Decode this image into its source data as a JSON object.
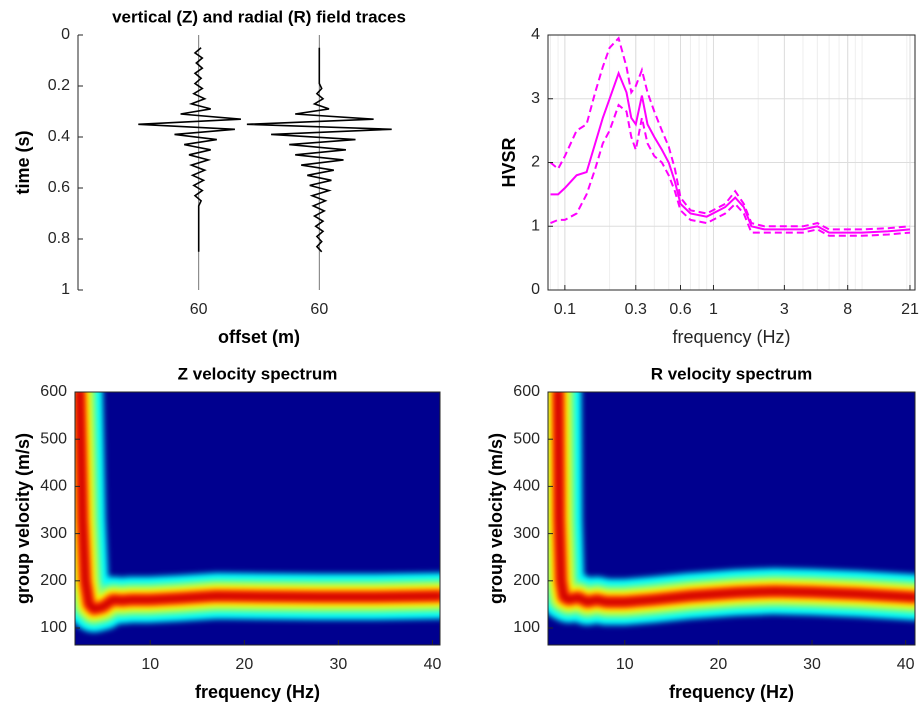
{
  "chart_data": [
    {
      "type": "wiggle",
      "title": "vertical (Z) and radial (R) field traces",
      "xlabel": "offset (m)",
      "ylabel": "time (s)",
      "xlim": [
        0,
        3
      ],
      "xticks": [
        {
          "value": 1,
          "label": "60"
        },
        {
          "value": 2,
          "label": "60"
        }
      ],
      "ylim": [
        0,
        1
      ],
      "yticks": [
        0,
        0.2,
        0.4,
        0.6,
        0.8,
        1
      ],
      "yreverse": true,
      "color": "#000000",
      "x": [
        0.05,
        0.07,
        0.09,
        0.11,
        0.13,
        0.15,
        0.17,
        0.19,
        0.21,
        0.23,
        0.25,
        0.27,
        0.29,
        0.31,
        0.33,
        0.35,
        0.37,
        0.39,
        0.41,
        0.43,
        0.45,
        0.47,
        0.49,
        0.51,
        0.53,
        0.55,
        0.57,
        0.59,
        0.61,
        0.63,
        0.65,
        0.67,
        0.69,
        0.71,
        0.73,
        0.75,
        0.77,
        0.79,
        0.81,
        0.83,
        0.85
      ],
      "series": [
        {
          "values": [
            0.02,
            -0.03,
            0.03,
            -0.02,
            0.03,
            -0.03,
            0.02,
            -0.03,
            0.03,
            -0.04,
            0.05,
            -0.06,
            0.1,
            -0.15,
            0.35,
            -0.5,
            0.3,
            -0.2,
            0.15,
            -0.12,
            0.1,
            -0.08,
            0.08,
            -0.06,
            0.05,
            -0.05,
            0.04,
            -0.04,
            0.03,
            -0.03,
            0.02,
            0,
            0,
            0,
            0,
            0,
            0,
            0,
            0,
            0,
            0
          ]
        },
        {
          "values": [
            0,
            0,
            0,
            0,
            0,
            0,
            0,
            0,
            0.02,
            -0.02,
            0.03,
            -0.04,
            0.08,
            -0.2,
            0.45,
            -0.6,
            0.6,
            -0.4,
            0.3,
            -0.25,
            0.22,
            -0.2,
            0.2,
            -0.15,
            0.12,
            -0.1,
            0.1,
            -0.08,
            0.08,
            -0.06,
            0.05,
            -0.05,
            0.04,
            -0.04,
            0.03,
            -0.03,
            0.03,
            -0.02,
            0.02,
            -0.02,
            0.02
          ]
        }
      ]
    },
    {
      "type": "line",
      "xlabel": "frequency (Hz)",
      "ylabel": "HVSR",
      "xscale": "log",
      "grid": true,
      "xlim": [
        0.077,
        22.7
      ],
      "xticks": [
        0.1,
        0.3,
        0.6,
        1,
        3,
        8,
        21
      ],
      "ylim": [
        0,
        4
      ],
      "yticks": [
        0,
        1,
        2,
        3,
        4
      ],
      "x": [
        0.08,
        0.09,
        0.1,
        0.12,
        0.14,
        0.16,
        0.18,
        0.2,
        0.23,
        0.26,
        0.28,
        0.3,
        0.33,
        0.36,
        0.4,
        0.45,
        0.5,
        0.55,
        0.6,
        0.7,
        0.9,
        1.2,
        1.4,
        1.6,
        1.8,
        2.2,
        3,
        4,
        5,
        6,
        8,
        10,
        15,
        21
      ],
      "series": [
        {
          "color": "#ff00ff",
          "dash": false,
          "values": [
            1.5,
            1.5,
            1.6,
            1.8,
            1.85,
            2.3,
            2.7,
            3.0,
            3.4,
            3.1,
            2.7,
            2.6,
            3.05,
            2.6,
            2.4,
            2.2,
            2.0,
            1.7,
            1.35,
            1.2,
            1.15,
            1.3,
            1.45,
            1.3,
            1.0,
            0.95,
            0.95,
            0.95,
            1.0,
            0.9,
            0.9,
            0.9,
            0.92,
            0.95
          ]
        },
        {
          "color": "#ff00ff",
          "dash": true,
          "values": [
            2.0,
            1.9,
            2.1,
            2.5,
            2.6,
            3.1,
            3.5,
            3.8,
            3.95,
            3.5,
            3.1,
            3.2,
            3.45,
            3.1,
            2.8,
            2.5,
            2.25,
            1.9,
            1.45,
            1.25,
            1.2,
            1.35,
            1.55,
            1.35,
            1.05,
            1.0,
            1.0,
            1.0,
            1.05,
            0.95,
            0.95,
            0.95,
            0.97,
            1.0
          ]
        },
        {
          "color": "#ff00ff",
          "dash": true,
          "values": [
            1.05,
            1.1,
            1.1,
            1.2,
            1.5,
            1.9,
            2.3,
            2.5,
            2.9,
            2.8,
            2.4,
            2.2,
            2.7,
            2.3,
            2.1,
            2.0,
            1.8,
            1.55,
            1.25,
            1.1,
            1.05,
            1.2,
            1.35,
            1.2,
            0.9,
            0.9,
            0.9,
            0.9,
            0.95,
            0.85,
            0.85,
            0.85,
            0.87,
            0.9
          ]
        }
      ]
    },
    {
      "type": "heatmap",
      "title": "Z velocity spectrum",
      "xlabel": "frequency (Hz)",
      "ylabel": "group velocity (m/s)",
      "xlim": [
        2,
        40.8
      ],
      "xticks": [
        10,
        20,
        30,
        40
      ],
      "ylim": [
        64,
        600
      ],
      "yticks": [
        100,
        200,
        300,
        400,
        500,
        600
      ],
      "background": "#00008f",
      "colormap": [
        "#00ffff",
        "#80ff80",
        "#ffff00",
        "#ff8000",
        "#ff0000",
        "#a00000"
      ],
      "x": [
        2.5,
        2.8,
        3.1,
        3.5,
        4,
        5,
        6,
        7,
        8,
        10,
        13,
        17,
        22,
        28,
        34,
        40.8
      ],
      "values": [
        600,
        330,
        200,
        150,
        140,
        145,
        160,
        158,
        160,
        160,
        163,
        168,
        167,
        166,
        166,
        168
      ]
    },
    {
      "type": "heatmap",
      "title": "R velocity spectrum",
      "xlabel": "frequency (Hz)",
      "ylabel": "group velocity (m/s)",
      "xlim": [
        1.8,
        41
      ],
      "xticks": [
        10,
        20,
        30,
        40
      ],
      "ylim": [
        64,
        600
      ],
      "yticks": [
        100,
        200,
        300,
        400,
        500,
        600
      ],
      "background": "#00008f",
      "colormap": [
        "#00ffff",
        "#80ff80",
        "#ffff00",
        "#ff8000",
        "#ff0000",
        "#a00000"
      ],
      "x": [
        2.9,
        3.0,
        3.2,
        3.5,
        4,
        5,
        6,
        7,
        8,
        10,
        13,
        17,
        22,
        26,
        30,
        35,
        41
      ],
      "values": [
        600,
        330,
        200,
        165,
        160,
        165,
        155,
        160,
        155,
        155,
        160,
        168,
        175,
        178,
        176,
        172,
        165
      ]
    }
  ]
}
